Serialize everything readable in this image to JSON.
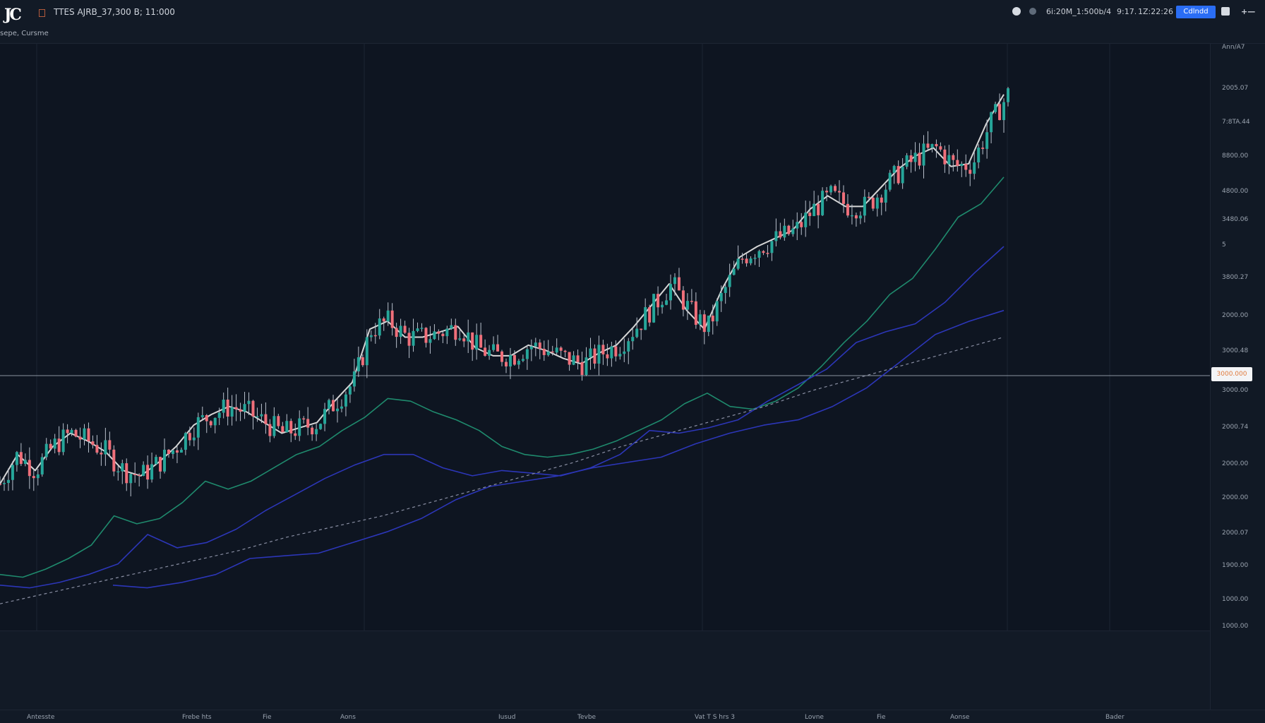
{
  "header": {
    "logo_text": "JC",
    "symbol_text": "TTES AJRB_37,300 B; 11:000",
    "sub_text": "sepe, Cursme",
    "right_text_1": "6i:20M_1:500b/4",
    "right_text_2": "9:17.",
    "right_text_3": "1Z:22:26",
    "button_label": "Cdlndd",
    "more_label": "+—"
  },
  "icons": [
    "gear-icon",
    "info-icon",
    "flag-icon",
    "menu-icon"
  ],
  "price_axis": {
    "labels": [
      "Ann/A7",
      "2005.07",
      "7:8TA.44",
      "8800.00",
      "4800.00",
      "3480.06",
      "5",
      "3800.27",
      "2000.00",
      "3000.48",
      "3000.00",
      "2000.74",
      "2000.00",
      "2000.00",
      "2000.07",
      "1900.00",
      "1000.00",
      "1000.00"
    ],
    "current_tag": "3000.000"
  },
  "time_axis": {
    "labels": [
      "Antesste",
      "Frebe hts",
      "Fie",
      "Aons",
      "Iusud",
      "Tevbe",
      "Vat T S hrs 3",
      "Lovne",
      "Fie",
      "Aonse",
      "Bader"
    ]
  },
  "colors": {
    "background": "#0e1521",
    "up_candle": "#26a69a",
    "down_candle": "#ef6f7a",
    "ma_white": "#d6d6d6",
    "ma_green": "#1f8a6d",
    "ma_blue": "#2c36b8",
    "accent": "#2a6df4"
  },
  "chart_data": {
    "type": "line",
    "title": "",
    "xlabel": "",
    "ylabel": "",
    "series": [
      {
        "values": [
          5.5,
          6.6,
          6.0,
          6.9,
          7.4,
          7.1,
          6.7,
          6.0,
          5.8,
          6.3,
          6.9,
          7.7,
          8.1,
          8.4,
          8.2,
          7.8,
          7.4,
          7.6,
          7.8,
          8.6,
          9.3,
          11.3,
          11.6,
          11.0,
          11.0,
          11.2,
          11.4,
          10.6,
          10.3,
          10.3,
          10.7,
          10.5,
          10.2,
          10.0,
          10.4,
          10.7,
          11.4,
          12.2,
          13.0,
          12.0,
          11.3,
          12.8,
          14.0,
          14.4,
          14.7,
          15.0,
          15.8,
          16.3,
          15.9,
          15.9,
          16.6,
          17.3,
          17.8,
          18.1,
          17.4,
          17.5,
          19.0,
          20.1
        ]
      },
      {
        "values": [
          2.1,
          2.0,
          2.3,
          2.7,
          3.2,
          4.3,
          4.0,
          4.2,
          4.8,
          5.6,
          5.3,
          5.6,
          6.1,
          6.6,
          6.9,
          7.5,
          8.0,
          8.7,
          8.6,
          8.2,
          7.9,
          7.5,
          6.9,
          6.6,
          6.5,
          6.6,
          6.8,
          7.1,
          7.5,
          7.9,
          8.5,
          8.9,
          8.4,
          8.3,
          8.6,
          9.1,
          9.9,
          10.8,
          11.6,
          12.6,
          13.2,
          14.3,
          15.5,
          16.0,
          17.0
        ]
      },
      {
        "values": [
          1.7,
          1.6,
          1.8,
          2.1,
          2.5,
          3.6,
          3.1,
          3.3,
          3.8,
          4.5,
          5.1,
          5.7,
          6.2,
          6.6,
          6.6,
          6.1,
          5.8,
          6.0,
          5.9,
          5.8,
          6.1,
          6.6,
          7.5,
          7.4,
          7.6,
          7.9,
          8.6,
          9.2,
          9.8,
          10.8,
          11.2,
          11.5,
          12.3,
          13.4,
          14.4
        ]
      },
      {
        "values": [
          1.7,
          1.6,
          1.8,
          2.1,
          2.7,
          2.8,
          2.9,
          3.3,
          3.7,
          4.2,
          4.9,
          5.4,
          5.6,
          5.8,
          6.1,
          6.3,
          6.5,
          7.0,
          7.4,
          7.7,
          7.9,
          8.4,
          9.1,
          10.1,
          11.1,
          11.6,
          12.0
        ]
      },
      {
        "values": [
          1.0,
          1.4,
          1.8,
          2.2,
          2.6,
          3.0,
          3.5,
          3.9,
          4.3,
          4.8,
          5.3,
          5.8,
          6.3,
          6.9,
          7.4,
          7.9,
          8.4,
          9.0,
          9.5,
          10.0,
          10.5,
          11.0
        ]
      }
    ]
  }
}
